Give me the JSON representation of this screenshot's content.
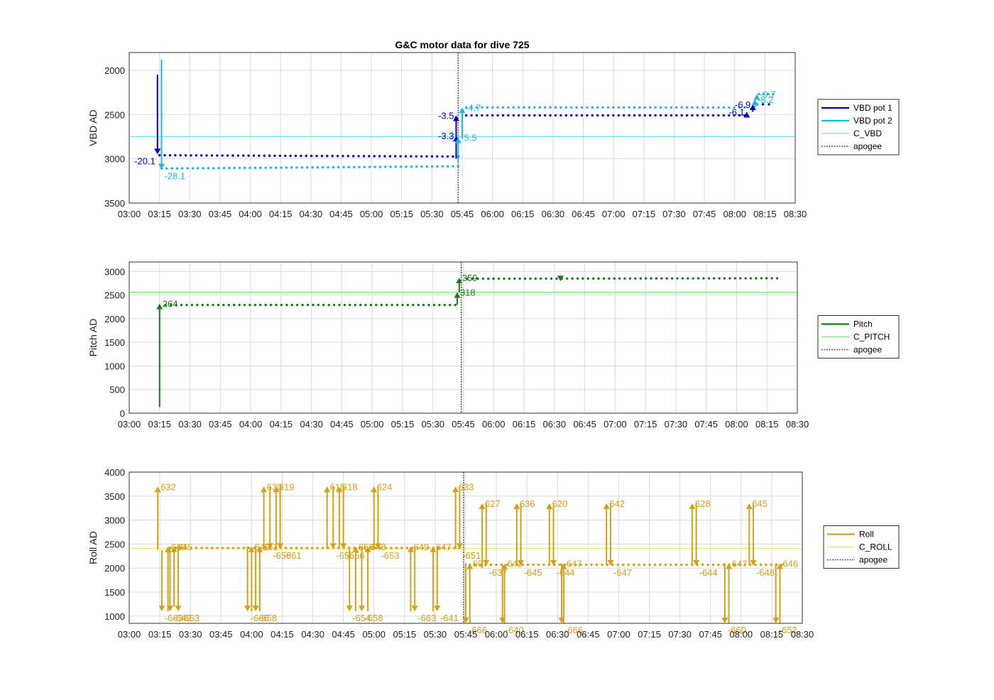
{
  "title": "G&C motor data for dive 725",
  "colors": {
    "vbd1": "#0000c8",
    "vbd2": "#1ab8e0",
    "cvbd": "#6fe0e8",
    "pitch": "#1a7a1a",
    "cpitch": "#7ee07e",
    "roll": "#d4a017",
    "croll": "#f5e27a",
    "apogee": "#555555"
  },
  "chart_data": [
    {
      "type": "line",
      "title": "G&C motor data for dive 725",
      "ylabel": "VBD AD",
      "xlabel": "",
      "xlim": [
        "03:00",
        "08:30"
      ],
      "ylim": [
        3500,
        1800
      ],
      "y_reversed": true,
      "yticks": [
        2000,
        2500,
        3000,
        3500
      ],
      "xticks": [
        "03:00",
        "03:15",
        "03:30",
        "03:45",
        "04:00",
        "04:15",
        "04:30",
        "04:45",
        "05:00",
        "05:15",
        "05:30",
        "05:45",
        "06:00",
        "06:15",
        "06:30",
        "06:45",
        "07:00",
        "07:15",
        "07:30",
        "07:45",
        "08:00",
        "08:15",
        "08:30"
      ],
      "grid": true,
      "legend_position": "outside-right",
      "legend": [
        "VBD pot 1",
        "VBD pot 2",
        "C_VBD",
        "apogee"
      ],
      "reference_line": {
        "name": "C_VBD",
        "y": 2750
      },
      "apogee": "05:43",
      "series": [
        {
          "name": "VBD pot 1",
          "color_key": "vbd1",
          "segments": [
            {
              "x_start": "03:15",
              "x_end": "05:43",
              "y_start": 2960,
              "y_end": 2975
            },
            {
              "x_start": "05:47",
              "x_end": "08:05",
              "y_start": 2510,
              "y_end": 2510
            },
            {
              "x_start": "08:11",
              "x_end": "08:17",
              "y_start": 2385,
              "y_end": 2385
            }
          ]
        },
        {
          "name": "VBD pot 2",
          "color_key": "vbd2",
          "segments": [
            {
              "x_start": "03:16",
              "x_end": "05:43",
              "y_start": 3110,
              "y_end": 3085
            },
            {
              "x_start": "05:47",
              "x_end": "08:05",
              "y_start": 2420,
              "y_end": 2420
            },
            {
              "x_start": "08:12",
              "x_end": "08:19",
              "y_start": 2270,
              "y_end": 2270
            }
          ]
        }
      ],
      "events": [
        {
          "series": "VBD pot 1",
          "x": "03:14",
          "from": 2050,
          "to": 2950,
          "label": "-20.1",
          "label_side": "left"
        },
        {
          "series": "VBD pot 2",
          "x": "03:16",
          "from": 1880,
          "to": 3120,
          "label": "-28.1",
          "label_side": "right"
        },
        {
          "series": "VBD pot 1",
          "x": "05:42",
          "from": 3000,
          "to": 2740,
          "label": "-3.3",
          "label_side": "left"
        },
        {
          "series": "VBD pot 1",
          "x": "05:42",
          "from": 2750,
          "to": 2510,
          "label": "-3.5",
          "label_side": "left"
        },
        {
          "series": "VBD pot 2",
          "x": "05:43",
          "from": 3050,
          "to": 2760,
          "label": "-5.5",
          "label_side": "right"
        },
        {
          "series": "VBD pot 2",
          "x": "05:45",
          "from": 2760,
          "to": 2420,
          "label": "-4.7",
          "label_side": "right"
        },
        {
          "series": "VBD pot 1",
          "x": "08:06",
          "from": 2510,
          "to": 2470,
          "label": "-6.1",
          "label_side": "left"
        },
        {
          "series": "VBD pot 1",
          "x": "08:09",
          "from": 2470,
          "to": 2385,
          "label": "-6.9",
          "label_side": "left"
        },
        {
          "series": "VBD pot 2",
          "x": "08:10",
          "from": 2420,
          "to": 2330,
          "label": "-8.2",
          "label_side": "right"
        },
        {
          "series": "VBD pot 2",
          "x": "08:11",
          "from": 2330,
          "to": 2270,
          "label": "-9.7",
          "label_side": "right"
        }
      ]
    },
    {
      "type": "line",
      "title": "",
      "ylabel": "Pitch AD",
      "xlabel": "",
      "xlim": [
        "03:00",
        "08:30"
      ],
      "ylim": [
        0,
        3200
      ],
      "yticks": [
        0,
        500,
        1000,
        1500,
        2000,
        2500,
        3000
      ],
      "xticks": [
        "03:00",
        "03:15",
        "03:30",
        "03:45",
        "04:00",
        "04:15",
        "04:30",
        "04:45",
        "05:00",
        "05:15",
        "05:30",
        "05:45",
        "06:00",
        "06:15",
        "06:30",
        "06:45",
        "07:00",
        "07:15",
        "07:30",
        "07:45",
        "08:00",
        "08:15",
        "08:30"
      ],
      "grid": true,
      "legend_position": "outside-right",
      "legend": [
        "Pitch",
        "C_PITCH",
        "apogee"
      ],
      "reference_line": {
        "name": "C_PITCH",
        "y": 2560
      },
      "apogee": "05:44",
      "series": [
        {
          "name": "Pitch",
          "color_key": "pitch",
          "segments": [
            {
              "x_start": "03:18",
              "x_end": "05:41",
              "y_start": 2290,
              "y_end": 2290
            },
            {
              "x_start": "05:47",
              "x_end": "08:20",
              "y_start": 2845,
              "y_end": 2855
            }
          ]
        }
      ],
      "events": [
        {
          "series": "Pitch",
          "x": "03:15",
          "from": 130,
          "to": 2320,
          "label": "264",
          "label_side": "right"
        },
        {
          "series": "Pitch",
          "x": "05:42",
          "from": 2290,
          "to": 2560,
          "label": "318",
          "label_side": "right"
        },
        {
          "series": "Pitch",
          "x": "05:43",
          "from": 2560,
          "to": 2870,
          "label": "359",
          "label_side": "right"
        },
        {
          "series": "Pitch",
          "x": "06:33",
          "from": 2850,
          "to": 2790,
          "label": "",
          "label_side": "right"
        }
      ]
    },
    {
      "type": "line",
      "title": "",
      "ylabel": "Roll AD",
      "xlabel": "",
      "xlim": [
        "03:00",
        "08:30"
      ],
      "ylim": [
        850,
        4000
      ],
      "yticks": [
        1000,
        1500,
        2000,
        2500,
        3000,
        3500,
        4000
      ],
      "xticks": [
        "03:00",
        "03:15",
        "03:30",
        "03:45",
        "04:00",
        "04:15",
        "04:30",
        "04:45",
        "05:00",
        "05:15",
        "05:30",
        "05:45",
        "06:00",
        "06:15",
        "06:30",
        "06:45",
        "07:00",
        "07:15",
        "07:30",
        "07:45",
        "08:00",
        "08:15",
        "08:30"
      ],
      "grid": true,
      "legend_position": "outside-right",
      "legend": [
        "Roll",
        "C_ROLL",
        "apogee"
      ],
      "reference_line": {
        "name": "C_ROLL",
        "y": 2410
      },
      "apogee": "05:44",
      "series": [
        {
          "name": "Roll",
          "color_key": "roll",
          "segments": [
            {
              "x_start": "03:20",
              "x_end": "05:42",
              "y_start": 2420,
              "y_end": 2420
            },
            {
              "x_start": "05:47",
              "x_end": "08:20",
              "y_start": 2070,
              "y_end": 2070
            }
          ]
        }
      ],
      "events": [
        {
          "x": "03:14",
          "from": 2380,
          "to": 3700,
          "label": "632"
        },
        {
          "x": "03:16",
          "from": 2380,
          "to": 1100,
          "label": "-663"
        },
        {
          "x": "03:19",
          "from": 1100,
          "to": 2450,
          "label": "649"
        },
        {
          "x": "03:20",
          "from": 2450,
          "to": 1100,
          "label": "-649"
        },
        {
          "x": "03:22",
          "from": 1200,
          "to": 2450,
          "label": "645"
        },
        {
          "x": "03:24",
          "from": 2450,
          "to": 1100,
          "label": "-653"
        },
        {
          "x": "03:58",
          "from": 2450,
          "to": 1100,
          "label": "-666"
        },
        {
          "x": "04:00",
          "from": 1100,
          "to": 2450,
          "label": "649"
        },
        {
          "x": "04:02",
          "from": 2450,
          "to": 1100,
          "label": "-658"
        },
        {
          "x": "04:04",
          "from": 1100,
          "to": 2450,
          "label": "651"
        },
        {
          "x": "04:06",
          "from": 2400,
          "to": 3700,
          "label": "630"
        },
        {
          "x": "04:09",
          "from": 3700,
          "to": 2400,
          "label": "-658"
        },
        {
          "x": "04:12",
          "from": 2400,
          "to": 3700,
          "label": "619"
        },
        {
          "x": "04:14",
          "from": 3700,
          "to": 2400,
          "label": "-661"
        },
        {
          "x": "04:37",
          "from": 2400,
          "to": 3700,
          "label": "615"
        },
        {
          "x": "04:40",
          "from": 3700,
          "to": 2400,
          "label": "-656"
        },
        {
          "x": "04:43",
          "from": 2400,
          "to": 3700,
          "label": "618"
        },
        {
          "x": "04:45",
          "from": 3700,
          "to": 2400,
          "label": "-656"
        },
        {
          "x": "04:48",
          "from": 2450,
          "to": 1100,
          "label": "-654"
        },
        {
          "x": "04:51",
          "from": 1100,
          "to": 2450,
          "label": "656"
        },
        {
          "x": "04:54",
          "from": 2450,
          "to": 1100,
          "label": "-658"
        },
        {
          "x": "04:57",
          "from": 1100,
          "to": 2450,
          "label": "648"
        },
        {
          "x": "05:00",
          "from": 2400,
          "to": 3700,
          "label": "624"
        },
        {
          "x": "05:02",
          "from": 3700,
          "to": 2400,
          "label": "-653"
        },
        {
          "x": "05:18",
          "from": 1100,
          "to": 2450,
          "label": "649"
        },
        {
          "x": "05:20",
          "from": 2450,
          "to": 1100,
          "label": "-663"
        },
        {
          "x": "05:29",
          "from": 1100,
          "to": 2450,
          "label": "647"
        },
        {
          "x": "05:31",
          "from": 2450,
          "to": 1100,
          "label": "-641"
        },
        {
          "x": "05:40",
          "from": 2400,
          "to": 3700,
          "label": "633"
        },
        {
          "x": "05:42",
          "from": 3700,
          "to": 2400,
          "label": "-651"
        },
        {
          "x": "05:45",
          "from": 2100,
          "to": 850,
          "label": "-666"
        },
        {
          "x": "05:47",
          "from": 850,
          "to": 2100,
          "label": "607"
        },
        {
          "x": "05:53",
          "from": 2000,
          "to": 3350,
          "label": "627"
        },
        {
          "x": "05:55",
          "from": 3350,
          "to": 2050,
          "label": "-637"
        },
        {
          "x": "06:03",
          "from": 2050,
          "to": 850,
          "label": "-640"
        },
        {
          "x": "06:04",
          "from": 850,
          "to": 2100,
          "label": "642"
        },
        {
          "x": "06:10",
          "from": 2050,
          "to": 3350,
          "label": "636"
        },
        {
          "x": "06:12",
          "from": 3350,
          "to": 2050,
          "label": "-645"
        },
        {
          "x": "06:26",
          "from": 2050,
          "to": 3350,
          "label": "620"
        },
        {
          "x": "06:28",
          "from": 3350,
          "to": 2050,
          "label": "-644"
        },
        {
          "x": "06:32",
          "from": 2100,
          "to": 850,
          "label": "-666"
        },
        {
          "x": "06:33",
          "from": 850,
          "to": 2100,
          "label": "647"
        },
        {
          "x": "06:54",
          "from": 2050,
          "to": 3350,
          "label": "642"
        },
        {
          "x": "06:56",
          "from": 3350,
          "to": 2050,
          "label": "-647"
        },
        {
          "x": "07:36",
          "from": 2050,
          "to": 3350,
          "label": "628"
        },
        {
          "x": "07:38",
          "from": 3350,
          "to": 2050,
          "label": "-644"
        },
        {
          "x": "07:52",
          "from": 2100,
          "to": 850,
          "label": "-660"
        },
        {
          "x": "07:54",
          "from": 850,
          "to": 2100,
          "label": "647"
        },
        {
          "x": "08:04",
          "from": 2050,
          "to": 3350,
          "label": "645"
        },
        {
          "x": "08:06",
          "from": 3350,
          "to": 2050,
          "label": "-648"
        },
        {
          "x": "08:17",
          "from": 2100,
          "to": 850,
          "label": "-652"
        },
        {
          "x": "08:19",
          "from": 850,
          "to": 2100,
          "label": "646"
        }
      ]
    }
  ]
}
